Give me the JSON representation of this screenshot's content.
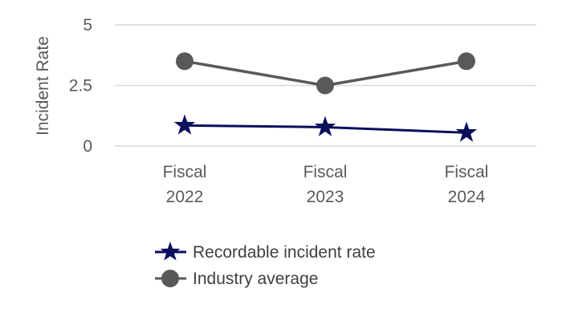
{
  "chart_data": {
    "type": "line",
    "title": "",
    "xlabel": "",
    "ylabel": "Incident Rate",
    "categories": [
      [
        "Fiscal",
        "2022"
      ],
      [
        "Fiscal",
        "2023"
      ],
      [
        "Fiscal",
        "2024"
      ]
    ],
    "ylim": [
      0,
      5
    ],
    "yticks": [
      0,
      2.5,
      5
    ],
    "ytick_labels": [
      "0",
      "2.5",
      "5"
    ],
    "grid": true,
    "legend_position": "bottom",
    "series": [
      {
        "name": "Recordable incident rate",
        "values": [
          0.85,
          0.78,
          0.55
        ],
        "color": "#0B0F5C",
        "marker": "star"
      },
      {
        "name": "Industry average",
        "values": [
          3.5,
          2.5,
          3.5
        ],
        "color": "#595959",
        "marker": "circle"
      }
    ]
  }
}
